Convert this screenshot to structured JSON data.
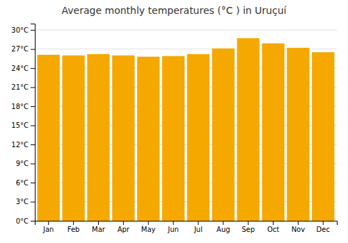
{
  "chart_data": {
    "type": "bar",
    "title": "Average monthly temperatures (°C ) in Uruçuí",
    "categories": [
      "Jan",
      "Feb",
      "Mar",
      "Apr",
      "May",
      "Jun",
      "Jul",
      "Aug",
      "Sep",
      "Oct",
      "Nov",
      "Dec"
    ],
    "values": [
      26.1,
      26.0,
      26.2,
      26.0,
      25.8,
      25.9,
      26.2,
      27.1,
      28.7,
      27.9,
      27.2,
      26.5
    ],
    "color": "#F5A800",
    "ylim": [
      0,
      31
    ],
    "yticks": [
      {
        "value": 0,
        "label": "0°C"
      },
      {
        "value": 3,
        "label": "3°C"
      },
      {
        "value": 6,
        "label": "6°C"
      },
      {
        "value": 9,
        "label": "9°C"
      },
      {
        "value": 12,
        "label": "12°C"
      },
      {
        "value": 15,
        "label": "15°C"
      },
      {
        "value": 18,
        "label": "18°C"
      },
      {
        "value": 21,
        "label": "21°C"
      },
      {
        "value": 24,
        "label": "24°C"
      },
      {
        "value": 27,
        "label": "27°C"
      },
      {
        "value": 30,
        "label": "30°C"
      }
    ],
    "grid": true
  }
}
